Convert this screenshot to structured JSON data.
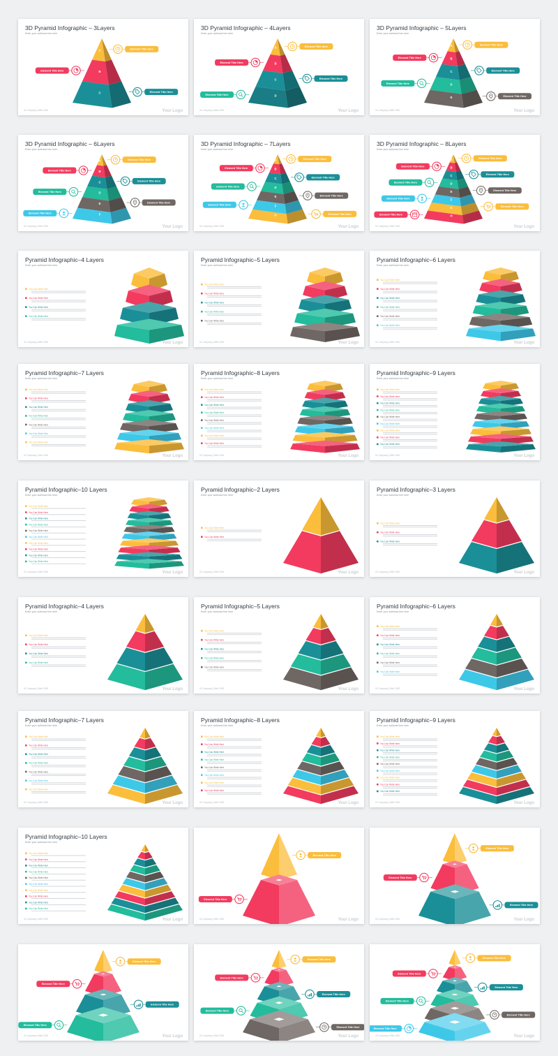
{
  "palette": {
    "yellow": "#fbbd3c",
    "red": "#f23b5f",
    "teal": "#1b8f97",
    "green": "#23bc9c",
    "gray": "#6f6763",
    "cyan": "#3ec8e8",
    "dark_teal": "#1a7c84"
  },
  "common": {
    "subtitle": "Enter your subhead line here",
    "footer_left": "01 Company | Web 2020",
    "footer_right": "Your Logo",
    "element_label": "Element Title Here",
    "list_heading": "You Can Write Here"
  },
  "slides": [
    {
      "title": "3D Pyramid Infographic – 3Layers",
      "style": "labeled",
      "layers": 3,
      "colors": [
        "yellow",
        "red",
        "teal"
      ],
      "letters": [
        "A",
        "B",
        "C"
      ],
      "labels": [
        {
          "side": "right",
          "color": "yellow",
          "icon": "clock-icon"
        },
        {
          "side": "left",
          "color": "red",
          "icon": "pie-icon"
        },
        {
          "side": "right",
          "color": "teal",
          "icon": "tag-icon"
        }
      ]
    },
    {
      "title": "3D Pyramid Infographic – 4Layers",
      "style": "labeled",
      "layers": 4,
      "colors": [
        "yellow",
        "red",
        "teal",
        "dark_teal"
      ],
      "letters": [
        "A",
        "B",
        "C",
        "D"
      ],
      "labels": [
        {
          "side": "right",
          "color": "yellow",
          "icon": "clock-icon"
        },
        {
          "side": "left",
          "color": "red",
          "icon": "pie-icon"
        },
        {
          "side": "right",
          "color": "teal",
          "icon": "tag-icon"
        },
        {
          "side": "left",
          "color": "green",
          "icon": "search-icon"
        }
      ]
    },
    {
      "title": "3D Pyramid Infographic – 5Layers",
      "style": "labeled",
      "layers": 5,
      "colors": [
        "yellow",
        "red",
        "teal",
        "green",
        "gray"
      ],
      "letters": [
        "A",
        "B",
        "C",
        "D",
        "E"
      ],
      "labels": [
        {
          "side": "right",
          "color": "yellow",
          "icon": "clock-icon"
        },
        {
          "side": "left",
          "color": "red",
          "icon": "pie-icon"
        },
        {
          "side": "right",
          "color": "teal",
          "icon": "tag-icon"
        },
        {
          "side": "left",
          "color": "green",
          "icon": "search-icon"
        },
        {
          "side": "right",
          "color": "gray",
          "icon": "location-icon"
        }
      ]
    },
    {
      "title": "3D Pyramid Infographic – 6Layers",
      "style": "labeled",
      "layers": 6,
      "colors": [
        "yellow",
        "red",
        "teal",
        "green",
        "gray",
        "cyan"
      ],
      "letters": [
        "A",
        "B",
        "C",
        "D",
        "E",
        "F"
      ],
      "labels": [
        {
          "side": "right",
          "color": "yellow",
          "icon": "clock-icon"
        },
        {
          "side": "left",
          "color": "red",
          "icon": "pie-icon"
        },
        {
          "side": "right",
          "color": "teal",
          "icon": "tag-icon"
        },
        {
          "side": "left",
          "color": "green",
          "icon": "search-icon"
        },
        {
          "side": "right",
          "color": "gray",
          "icon": "location-icon"
        },
        {
          "side": "left",
          "color": "cyan",
          "icon": "user-icon"
        }
      ]
    },
    {
      "title": "3D Pyramid Infographic – 7Layers",
      "style": "labeled",
      "layers": 7,
      "colors": [
        "yellow",
        "red",
        "teal",
        "green",
        "gray",
        "cyan",
        "yellow"
      ],
      "letters": [
        "A",
        "B",
        "C",
        "D",
        "E",
        "F",
        "G"
      ],
      "labels": [
        {
          "side": "right",
          "color": "yellow",
          "icon": "clock-icon"
        },
        {
          "side": "left",
          "color": "red",
          "icon": "pie-icon"
        },
        {
          "side": "right",
          "color": "teal",
          "icon": "tag-icon"
        },
        {
          "side": "left",
          "color": "green",
          "icon": "search-icon"
        },
        {
          "side": "right",
          "color": "gray",
          "icon": "location-icon"
        },
        {
          "side": "left",
          "color": "cyan",
          "icon": "user-icon"
        },
        {
          "side": "right",
          "color": "yellow",
          "icon": "cart-icon"
        }
      ]
    },
    {
      "title": "3D Pyramid Infographic – 8Layers",
      "style": "labeled",
      "layers": 8,
      "colors": [
        "yellow",
        "red",
        "teal",
        "green",
        "gray",
        "cyan",
        "yellow",
        "red"
      ],
      "letters": [
        "A",
        "B",
        "C",
        "D",
        "E",
        "F",
        "G",
        "H"
      ],
      "labels": [
        {
          "side": "right",
          "color": "yellow",
          "icon": "clock-icon"
        },
        {
          "side": "left",
          "color": "red",
          "icon": "pie-icon"
        },
        {
          "side": "right",
          "color": "teal",
          "icon": "tag-icon"
        },
        {
          "side": "left",
          "color": "green",
          "icon": "search-icon"
        },
        {
          "side": "right",
          "color": "gray",
          "icon": "location-icon"
        },
        {
          "side": "left",
          "color": "cyan",
          "icon": "user-icon"
        },
        {
          "side": "right",
          "color": "yellow",
          "icon": "cart-icon"
        },
        {
          "side": "left",
          "color": "red",
          "icon": "calendar-icon"
        }
      ]
    },
    {
      "title": "Pyramid Infographic–4 Layers",
      "style": "stack",
      "layers": 4,
      "colors": [
        "yellow",
        "red",
        "teal",
        "green"
      ]
    },
    {
      "title": "Pyramid Infographic–5 Layers",
      "style": "stack",
      "layers": 5,
      "colors": [
        "yellow",
        "red",
        "teal",
        "green",
        "gray"
      ]
    },
    {
      "title": "Pyramid Infographic–6 Layers",
      "style": "stack",
      "layers": 6,
      "colors": [
        "yellow",
        "red",
        "teal",
        "green",
        "gray",
        "cyan"
      ]
    },
    {
      "title": "Pyramid Infographic–7 Layers",
      "style": "stack",
      "layers": 7,
      "colors": [
        "yellow",
        "red",
        "teal",
        "green",
        "gray",
        "cyan",
        "yellow"
      ]
    },
    {
      "title": "Pyramid Infographic–8 Layers",
      "style": "stack",
      "layers": 8,
      "colors": [
        "yellow",
        "red",
        "teal",
        "green",
        "gray",
        "cyan",
        "yellow",
        "red"
      ]
    },
    {
      "title": "Pyramid Infographic–9 Layers",
      "style": "stack",
      "layers": 9,
      "colors": [
        "yellow",
        "red",
        "teal",
        "green",
        "gray",
        "cyan",
        "yellow",
        "red",
        "teal"
      ]
    },
    {
      "title": "Pyramid Infographic–10 Layers",
      "style": "stack",
      "layers": 10,
      "colors": [
        "yellow",
        "red",
        "teal",
        "green",
        "gray",
        "cyan",
        "yellow",
        "red",
        "teal",
        "green"
      ]
    },
    {
      "title": "Pyramid Infographic–2 Layers",
      "style": "cone",
      "layers": 2,
      "colors": [
        "yellow",
        "red"
      ]
    },
    {
      "title": "Pyramid Infographic–3 Layers",
      "style": "cone",
      "layers": 3,
      "colors": [
        "yellow",
        "red",
        "teal"
      ]
    },
    {
      "title": "Pyramid Infographic–4 Layers",
      "style": "cone",
      "layers": 4,
      "colors": [
        "yellow",
        "red",
        "teal",
        "green"
      ]
    },
    {
      "title": "Pyramid Infographic–5 Layers",
      "style": "cone",
      "layers": 5,
      "colors": [
        "yellow",
        "red",
        "teal",
        "green",
        "gray"
      ]
    },
    {
      "title": "Pyramid Infographic–6 Layers",
      "style": "cone",
      "layers": 6,
      "colors": [
        "yellow",
        "red",
        "teal",
        "green",
        "gray",
        "cyan"
      ]
    },
    {
      "title": "Pyramid Infographic–7 Layers",
      "style": "cone",
      "layers": 7,
      "colors": [
        "yellow",
        "red",
        "teal",
        "green",
        "gray",
        "cyan",
        "yellow"
      ]
    },
    {
      "title": "Pyramid Infographic–8 Layers",
      "style": "cone",
      "layers": 8,
      "colors": [
        "yellow",
        "red",
        "teal",
        "green",
        "gray",
        "cyan",
        "yellow",
        "red"
      ]
    },
    {
      "title": "Pyramid Infographic–9 Layers",
      "style": "cone",
      "layers": 9,
      "colors": [
        "yellow",
        "red",
        "teal",
        "green",
        "gray",
        "cyan",
        "yellow",
        "red",
        "teal"
      ]
    },
    {
      "title": "Pyramid Infographic–10 Layers",
      "style": "cone",
      "layers": 10,
      "colors": [
        "yellow",
        "red",
        "teal",
        "green",
        "gray",
        "cyan",
        "yellow",
        "red",
        "teal",
        "green"
      ]
    },
    {
      "title": "",
      "style": "exploded",
      "layers": 2,
      "colors": [
        "yellow",
        "red"
      ],
      "labels": [
        {
          "side": "right",
          "color": "yellow",
          "icon": "user-icon"
        },
        {
          "side": "left",
          "color": "red",
          "icon": "cart-icon"
        }
      ]
    },
    {
      "title": "",
      "style": "exploded",
      "layers": 3,
      "colors": [
        "yellow",
        "red",
        "teal"
      ],
      "labels": [
        {
          "side": "right",
          "color": "yellow",
          "icon": "user-icon"
        },
        {
          "side": "left",
          "color": "red",
          "icon": "cart-icon"
        },
        {
          "side": "right",
          "color": "teal",
          "icon": "chart-icon"
        }
      ]
    },
    {
      "title": "",
      "style": "exploded",
      "layers": 4,
      "colors": [
        "yellow",
        "red",
        "teal",
        "green"
      ],
      "labels": [
        {
          "side": "right",
          "color": "yellow",
          "icon": "user-icon"
        },
        {
          "side": "left",
          "color": "red",
          "icon": "cart-icon"
        },
        {
          "side": "right",
          "color": "teal",
          "icon": "chart-icon"
        },
        {
          "side": "left",
          "color": "green",
          "icon": "search-icon"
        }
      ]
    },
    {
      "title": "",
      "style": "exploded",
      "layers": 5,
      "colors": [
        "yellow",
        "red",
        "teal",
        "green",
        "gray"
      ],
      "labels": [
        {
          "side": "right",
          "color": "yellow",
          "icon": "user-icon"
        },
        {
          "side": "left",
          "color": "red",
          "icon": "cart-icon"
        },
        {
          "side": "right",
          "color": "teal",
          "icon": "chart-icon"
        },
        {
          "side": "left",
          "color": "green",
          "icon": "search-icon"
        },
        {
          "side": "right",
          "color": "gray",
          "icon": "clock-icon"
        }
      ]
    },
    {
      "title": "",
      "style": "exploded",
      "layers": 6,
      "colors": [
        "yellow",
        "red",
        "teal",
        "green",
        "gray",
        "cyan"
      ],
      "labels": [
        {
          "side": "right",
          "color": "yellow",
          "icon": "user-icon"
        },
        {
          "side": "left",
          "color": "red",
          "icon": "cart-icon"
        },
        {
          "side": "right",
          "color": "teal",
          "icon": "chart-icon"
        },
        {
          "side": "left",
          "color": "green",
          "icon": "search-icon"
        },
        {
          "side": "right",
          "color": "gray",
          "icon": "clock-icon"
        },
        {
          "side": "left",
          "color": "cyan",
          "icon": "pie-icon"
        }
      ]
    }
  ]
}
